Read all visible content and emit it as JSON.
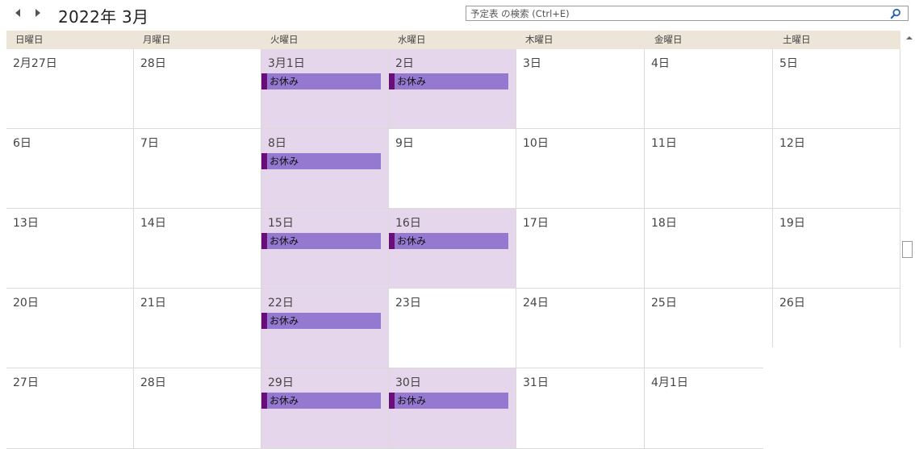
{
  "header": {
    "title": "2022年 3月",
    "prev_icon": "triangle-left-icon",
    "next_icon": "triangle-right-icon"
  },
  "search": {
    "placeholder": "予定表 の検索 (Ctrl+E)",
    "icon": "search-icon"
  },
  "weekdays": [
    "日曜日",
    "月曜日",
    "火曜日",
    "水曜日",
    "木曜日",
    "金曜日",
    "土曜日"
  ],
  "weeks": [
    [
      {
        "date": "2月27日"
      },
      {
        "date": "28日"
      },
      {
        "date": "3月1日",
        "event": "お休み"
      },
      {
        "date": "2日",
        "event": "お休み"
      },
      {
        "date": "3日"
      },
      {
        "date": "4日"
      },
      {
        "date": "5日"
      }
    ],
    [
      {
        "date": "6日"
      },
      {
        "date": "7日"
      },
      {
        "date": "8日",
        "event": "お休み"
      },
      {
        "date": "9日"
      },
      {
        "date": "10日"
      },
      {
        "date": "11日"
      },
      {
        "date": "12日"
      }
    ],
    [
      {
        "date": "13日"
      },
      {
        "date": "14日"
      },
      {
        "date": "15日",
        "event": "お休み"
      },
      {
        "date": "16日",
        "event": "お休み"
      },
      {
        "date": "17日"
      },
      {
        "date": "18日"
      },
      {
        "date": "19日"
      }
    ],
    [
      {
        "date": "20日"
      },
      {
        "date": "21日"
      },
      {
        "date": "22日",
        "event": "お休み"
      },
      {
        "date": "23日"
      },
      {
        "date": "24日"
      },
      {
        "date": "25日"
      },
      {
        "date": "26日"
      }
    ],
    [
      {
        "date": "27日"
      },
      {
        "date": "28日"
      },
      {
        "date": "29日",
        "event": "お休み"
      },
      {
        "date": "30日",
        "event": "お休み"
      },
      {
        "date": "31日"
      },
      {
        "date": "4月1日"
      },
      {
        "date": ""
      }
    ]
  ],
  "colors": {
    "header_bg": "#ede5d8",
    "event_fill": "#9579d1",
    "event_accent": "#6a0c7a",
    "shaded_day": "#e5d6eb"
  }
}
